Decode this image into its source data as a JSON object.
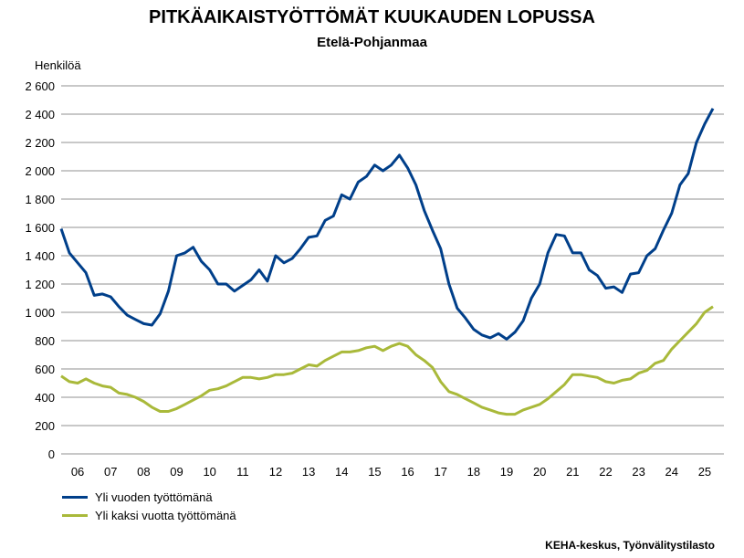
{
  "chart_data": {
    "type": "line",
    "title": "PITKÄAIKAISTYÖTTÖMÄT KUUKAUDEN LOPUSSA",
    "subtitle": "Etelä-Pohjanmaa",
    "ylabel": "Henkilöä",
    "xlabel": "",
    "ylim": [
      0,
      2600
    ],
    "xlim": [
      2006,
      2026
    ],
    "yticks": [
      0,
      200,
      400,
      600,
      800,
      1000,
      1200,
      1400,
      1600,
      1800,
      2000,
      2200,
      2400,
      2600
    ],
    "ytick_labels": [
      "0",
      "200",
      "400",
      "600",
      "800",
      "1 000",
      "1 200",
      "1 400",
      "1 600",
      "1 800",
      "2 000",
      "2 200",
      "2 400",
      "2 600"
    ],
    "xtick_labels": [
      "06",
      "07",
      "08",
      "09",
      "10",
      "11",
      "12",
      "13",
      "14",
      "15",
      "16",
      "17",
      "18",
      "19",
      "20",
      "21",
      "22",
      "23",
      "24",
      "25"
    ],
    "grid": true,
    "legend_position": "bottom-left",
    "source": "KEHA-keskus, Työnvälitystilasto",
    "series": [
      {
        "name": "Yli vuoden työttömänä",
        "color": "#003f8a",
        "x": [
          2006,
          2006.25,
          2006.5,
          2006.75,
          2007,
          2007.25,
          2007.5,
          2007.75,
          2008,
          2008.25,
          2008.5,
          2008.75,
          2009,
          2009.25,
          2009.5,
          2009.75,
          2010,
          2010.25,
          2010.5,
          2010.75,
          2011,
          2011.25,
          2011.5,
          2011.75,
          2012,
          2012.25,
          2012.5,
          2012.75,
          2013,
          2013.25,
          2013.5,
          2013.75,
          2014,
          2014.25,
          2014.5,
          2014.75,
          2015,
          2015.25,
          2015.5,
          2015.75,
          2016,
          2016.25,
          2016.5,
          2016.75,
          2017,
          2017.25,
          2017.5,
          2017.75,
          2018,
          2018.25,
          2018.5,
          2018.75,
          2019,
          2019.25,
          2019.5,
          2019.75,
          2020,
          2020.25,
          2020.5,
          2020.75,
          2021,
          2021.25,
          2021.5,
          2021.75,
          2022,
          2022.25,
          2022.5,
          2022.75,
          2023,
          2023.25,
          2023.5,
          2023.75,
          2024,
          2024.25,
          2024.5,
          2024.75,
          2025,
          2025.25,
          2025.5,
          2025.75
        ],
        "values": [
          1590,
          1420,
          1350,
          1280,
          1120,
          1130,
          1110,
          1040,
          980,
          950,
          920,
          910,
          990,
          1150,
          1400,
          1420,
          1460,
          1360,
          1300,
          1200,
          1200,
          1150,
          1190,
          1230,
          1300,
          1220,
          1400,
          1350,
          1380,
          1450,
          1530,
          1540,
          1650,
          1680,
          1830,
          1800,
          1920,
          1960,
          2040,
          2000,
          2040,
          2110,
          2020,
          1900,
          1720,
          1580,
          1450,
          1200,
          1030,
          960,
          880,
          840,
          820,
          850,
          810,
          860,
          940,
          1100,
          1200,
          1420,
          1550,
          1540,
          1420,
          1420,
          1300,
          1260,
          1170,
          1180,
          1140,
          1270,
          1280,
          1400,
          1450,
          1580,
          1700,
          1900,
          1980,
          2200,
          2330,
          2440
        ]
      },
      {
        "name": "Yli kaksi vuotta työttömänä",
        "color": "#a9b93a",
        "x": [
          2006,
          2006.25,
          2006.5,
          2006.75,
          2007,
          2007.25,
          2007.5,
          2007.75,
          2008,
          2008.25,
          2008.5,
          2008.75,
          2009,
          2009.25,
          2009.5,
          2009.75,
          2010,
          2010.25,
          2010.5,
          2010.75,
          2011,
          2011.25,
          2011.5,
          2011.75,
          2012,
          2012.25,
          2012.5,
          2012.75,
          2013,
          2013.25,
          2013.5,
          2013.75,
          2014,
          2014.25,
          2014.5,
          2014.75,
          2015,
          2015.25,
          2015.5,
          2015.75,
          2016,
          2016.25,
          2016.5,
          2016.75,
          2017,
          2017.25,
          2017.5,
          2017.75,
          2018,
          2018.25,
          2018.5,
          2018.75,
          2019,
          2019.25,
          2019.5,
          2019.75,
          2020,
          2020.25,
          2020.5,
          2020.75,
          2021,
          2021.25,
          2021.5,
          2021.75,
          2022,
          2022.25,
          2022.5,
          2022.75,
          2023,
          2023.25,
          2023.5,
          2023.75,
          2024,
          2024.25,
          2024.5,
          2024.75,
          2025,
          2025.25,
          2025.5,
          2025.75
        ],
        "values": [
          550,
          510,
          500,
          530,
          500,
          480,
          470,
          430,
          420,
          400,
          370,
          330,
          300,
          300,
          320,
          350,
          380,
          410,
          450,
          460,
          480,
          510,
          540,
          540,
          530,
          540,
          560,
          560,
          570,
          600,
          630,
          620,
          660,
          690,
          720,
          720,
          730,
          750,
          760,
          730,
          760,
          780,
          760,
          700,
          660,
          610,
          510,
          440,
          420,
          390,
          360,
          330,
          310,
          290,
          280,
          280,
          310,
          330,
          350,
          390,
          440,
          490,
          560,
          560,
          550,
          540,
          510,
          500,
          520,
          530,
          570,
          590,
          640,
          660,
          740,
          800,
          860,
          920,
          1000,
          1040
        ]
      }
    ]
  }
}
